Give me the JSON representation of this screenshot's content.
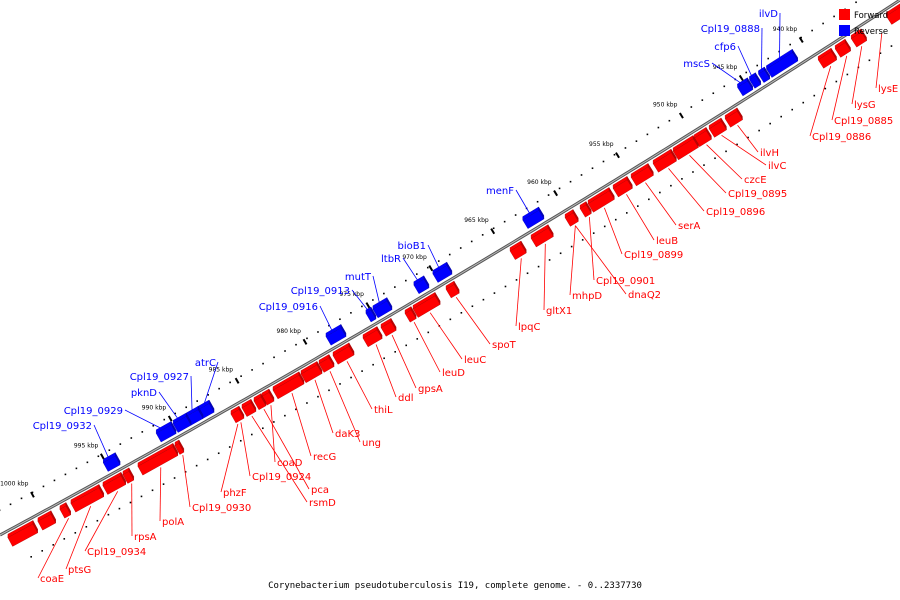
{
  "caption": "Corynebacterium pseudotuberculosis I19, complete genome. - 0..2337730",
  "legend": {
    "forward_label": "Forward",
    "reverse_label": "Reverse",
    "forward_color": "#ff0000",
    "reverse_color": "#0000ff"
  },
  "colors": {
    "forward": "#ff0000",
    "reverse": "#0000ff",
    "backbone": "#666666"
  },
  "ticks": [
    {
      "label": "940 kbp"
    },
    {
      "label": "945 kbp"
    },
    {
      "label": "950 kbp"
    },
    {
      "label": "955 kbp"
    },
    {
      "label": "960 kbp"
    },
    {
      "label": "965 kbp"
    },
    {
      "label": "970 kbp"
    },
    {
      "label": "975 kbp"
    },
    {
      "label": "980 kbp"
    },
    {
      "label": "985 kbp"
    },
    {
      "label": "990 kbp"
    },
    {
      "label": "995 kbp"
    },
    {
      "label": "1000 kbp"
    }
  ],
  "forward_genes": [
    {
      "label": "lysE"
    },
    {
      "label": "lysG"
    },
    {
      "label": "Cpl19_0885"
    },
    {
      "label": "Cpl19_0886"
    },
    {
      "label": "ilvH"
    },
    {
      "label": "ilvC"
    },
    {
      "label": "czcE"
    },
    {
      "label": "Cpl19_0895"
    },
    {
      "label": "Cpl19_0896"
    },
    {
      "label": "serA"
    },
    {
      "label": "leuB"
    },
    {
      "label": "Cpl19_0899"
    },
    {
      "label": "Cpl19_0901"
    },
    {
      "label": "dnaQ2"
    },
    {
      "label": "mhpD"
    },
    {
      "label": "gltX1"
    },
    {
      "label": "lpqC"
    },
    {
      "label": "spoT"
    },
    {
      "label": "leuC"
    },
    {
      "label": "leuD"
    },
    {
      "label": "gpsA"
    },
    {
      "label": "ddl"
    },
    {
      "label": "thiL"
    },
    {
      "label": "ung"
    },
    {
      "label": "daK3"
    },
    {
      "label": "recG"
    },
    {
      "label": "coaD"
    },
    {
      "label": "pca"
    },
    {
      "label": "rsmD"
    },
    {
      "label": "Cpl19_0924"
    },
    {
      "label": "phzF"
    },
    {
      "label": "Cpl19_0930"
    },
    {
      "label": "polA"
    },
    {
      "label": "rpsA"
    },
    {
      "label": "Cpl19_0934"
    },
    {
      "label": "ptsG"
    },
    {
      "label": "coaE"
    }
  ],
  "reverse_genes": [
    {
      "label": "ilvD"
    },
    {
      "label": "Cpl19_0888"
    },
    {
      "label": "cfp6"
    },
    {
      "label": "mscS"
    },
    {
      "label": "menF"
    },
    {
      "label": "bioB1"
    },
    {
      "label": "ltbR"
    },
    {
      "label": "mutT"
    },
    {
      "label": "Cpl19_0913"
    },
    {
      "label": "Cpl19_0916"
    },
    {
      "label": "atrC"
    },
    {
      "label": "Cpl19_0927"
    },
    {
      "label": "pknD"
    },
    {
      "label": "Cpl19_0929"
    },
    {
      "label": "Cpl19_0932"
    }
  ]
}
